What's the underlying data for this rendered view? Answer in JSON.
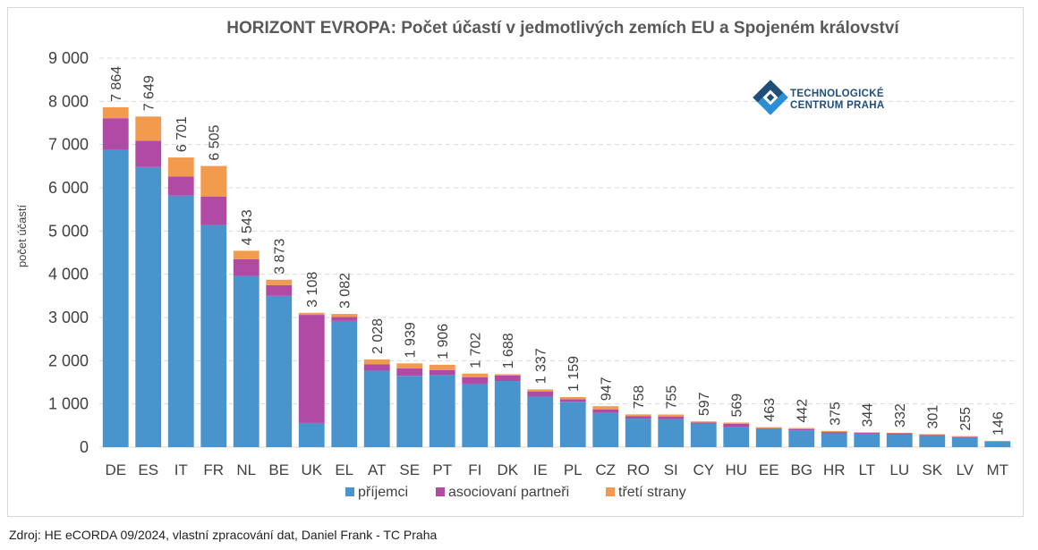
{
  "chart_data": {
    "type": "bar",
    "stacked": true,
    "title": "HORIZONT EVROPA: Počet účastí v jedmotlivých zemích EU a Spojeném  království",
    "ylabel": "počet účastí",
    "xlabel": "",
    "ylim": [
      0,
      9000
    ],
    "yticks": [
      0,
      1000,
      2000,
      3000,
      4000,
      5000,
      6000,
      7000,
      8000,
      9000
    ],
    "ytick_labels": [
      "0",
      "1 000",
      "2 000",
      "3 000",
      "4 000",
      "5 000",
      "6 000",
      "7 000",
      "8 000",
      "9 000"
    ],
    "grid": true,
    "legend_position": "bottom",
    "categories": [
      "DE",
      "ES",
      "IT",
      "FR",
      "NL",
      "BE",
      "UK",
      "EL",
      "AT",
      "SE",
      "PT",
      "FI",
      "DK",
      "IE",
      "PL",
      "CZ",
      "RO",
      "SI",
      "CY",
      "HU",
      "EE",
      "BG",
      "HR",
      "LT",
      "LU",
      "SK",
      "LV",
      "MT"
    ],
    "series": [
      {
        "name": "příjemci",
        "color": "#4a94ce",
        "values": [
          6890,
          6480,
          5820,
          5140,
          3960,
          3500,
          560,
          2920,
          1770,
          1650,
          1660,
          1470,
          1530,
          1170,
          1050,
          790,
          660,
          650,
          540,
          460,
          420,
          390,
          320,
          310,
          300,
          260,
          230,
          130
        ]
      },
      {
        "name": "asociovaní partneři",
        "color": "#b04aa5",
        "values": [
          720,
          610,
          440,
          660,
          390,
          250,
          2500,
          90,
          150,
          170,
          120,
          150,
          130,
          120,
          60,
          80,
          60,
          60,
          30,
          80,
          20,
          30,
          30,
          20,
          20,
          20,
          10,
          10
        ]
      },
      {
        "name": "třetí strany",
        "color": "#f29b4f",
        "values": [
          254,
          559,
          441,
          705,
          193,
          123,
          48,
          72,
          108,
          119,
          126,
          82,
          28,
          47,
          49,
          77,
          38,
          45,
          27,
          29,
          23,
          22,
          25,
          14,
          12,
          21,
          15,
          6
        ]
      }
    ],
    "totals": [
      7864,
      7649,
      6701,
      6505,
      4543,
      3873,
      3108,
      3082,
      2028,
      1939,
      1906,
      1702,
      1688,
      1337,
      1159,
      947,
      758,
      755,
      597,
      569,
      463,
      442,
      375,
      344,
      332,
      301,
      255,
      146
    ],
    "total_labels": [
      "7 864",
      "7 649",
      "6 701",
      "6 505",
      "4 543",
      "3 873",
      "3 108",
      "3 082",
      "2 028",
      "1 939",
      "1 906",
      "1 702",
      "1 688",
      "1 337",
      "1 159",
      "947",
      "758",
      "755",
      "597",
      "569",
      "463",
      "442",
      "375",
      "344",
      "332",
      "301",
      "255",
      "146"
    ]
  },
  "logo": {
    "line1": "TECHNOLOGICKÉ",
    "line2": "CENTRUM PRAHA",
    "icon": "tc-praha-logo-icon",
    "color_dark": "#1f4e79",
    "color_light": "#2b8fd6"
  },
  "source": "Zdroj: HE eCORDA 09/2024, vlastní zpracování dat, Daniel Frank - TC Praha"
}
